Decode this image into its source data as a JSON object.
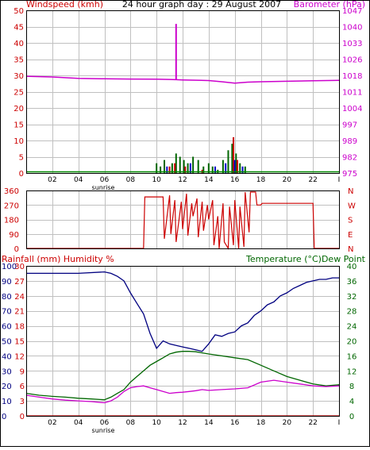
{
  "title": "24 hour graph day : 29 August 2007",
  "colors": {
    "wind": "#cc0000",
    "baro": "#cc00cc",
    "tempaxis": "#006600",
    "humaxis": "#000080",
    "dewaxis": "#cc00cc",
    "gust": "#0000cc",
    "grid": "#c0c0c0",
    "border": "#000000"
  },
  "chart_data": [
    {
      "type": "line",
      "id": "wind_baro",
      "ylabel_left": "Windspeed (kmh)",
      "ylabel_right": "Barometer (hPa)",
      "xticks": [
        "02",
        "04",
        "06",
        "08",
        "10",
        "12",
        "14",
        "16",
        "18",
        "20",
        "22",
        "I"
      ],
      "x_annotation": "sunrise",
      "yticks_left": [
        "0",
        "5",
        "10",
        "15",
        "20",
        "25",
        "30",
        "35",
        "40",
        "45",
        "50"
      ],
      "yticks_right": [
        "975",
        "982",
        "989",
        "997",
        "1004",
        "1011",
        "1018",
        "1026",
        "1033",
        "1040",
        "1047"
      ],
      "ylim_left": [
        0,
        50
      ],
      "ylim_right": [
        975,
        1047
      ],
      "series": [
        {
          "axis": "right",
          "color_key": "baro",
          "x": [
            0,
            2,
            4,
            6,
            8,
            10,
            11,
            11.5,
            12,
            14,
            15,
            16,
            17,
            18,
            20,
            22,
            24
          ],
          "y": [
            1017.8,
            1017.5,
            1016.9,
            1016.7,
            1016.6,
            1016.5,
            1016.4,
            1016.3,
            1016.2,
            1015.9,
            1015.4,
            1014.8,
            1015.2,
            1015.4,
            1015.6,
            1015.8,
            1016.0
          ]
        },
        {
          "axis": "right",
          "color_key": "baro",
          "type": "spike",
          "x": [
            11.5
          ],
          "y": [
            1041
          ]
        },
        {
          "axis": "left",
          "color_key": "tempaxis",
          "type": "bars",
          "x": [
            10.0,
            10.3,
            10.6,
            11.2,
            11.5,
            11.8,
            12.1,
            12.4,
            12.8,
            13.2,
            13.6,
            14.0,
            14.3,
            14.7,
            15.1,
            15.5,
            15.8,
            16.1,
            16.4,
            16.8
          ],
          "y": [
            3,
            2,
            4,
            3,
            6,
            5,
            4,
            3,
            5,
            4,
            2,
            3,
            2,
            1,
            4,
            7,
            9,
            6,
            3,
            2
          ]
        },
        {
          "axis": "left",
          "color_key": "wind",
          "type": "bars",
          "x": [
            11.0,
            11.4,
            12.2,
            13.5,
            15.9,
            16.2
          ],
          "y": [
            2,
            3,
            2,
            1,
            11,
            4
          ]
        },
        {
          "axis": "left",
          "color_key": "gust",
          "type": "bars",
          "x": [
            10.8,
            12.6,
            14.5,
            15.3,
            16.0,
            16.6
          ],
          "y": [
            2,
            3,
            2,
            3,
            4,
            2
          ]
        }
      ]
    },
    {
      "type": "line",
      "id": "wind_dir",
      "yticks_left": [
        "0",
        "90",
        "180",
        "270",
        "360"
      ],
      "yticks_right": [
        "N",
        "E",
        "S",
        "W",
        "N"
      ],
      "ylim": [
        0,
        360
      ],
      "series": [
        {
          "color_key": "wind",
          "x": [
            0,
            9,
            9.1,
            10.5,
            10.6,
            11.0,
            11.1,
            11.4,
            11.5,
            11.9,
            12.0,
            12.3,
            12.4,
            12.7,
            12.8,
            13.1,
            13.2,
            13.5,
            13.6,
            13.9,
            14.0,
            14.3,
            14.4,
            14.7,
            14.8,
            15.1,
            15.2,
            15.5,
            15.6,
            15.9,
            16.0,
            16.3,
            16.4,
            16.7,
            16.8,
            17.1,
            17.2,
            17.6,
            17.7,
            18.0,
            18.1,
            22.0,
            22.1,
            24.0
          ],
          "y": [
            0,
            0,
            320,
            320,
            60,
            330,
            90,
            300,
            40,
            290,
            120,
            340,
            80,
            280,
            200,
            310,
            70,
            290,
            110,
            270,
            180,
            300,
            20,
            200,
            0,
            280,
            40,
            0,
            260,
            20,
            300,
            0,
            260,
            10,
            350,
            100,
            350,
            350,
            270,
            270,
            280,
            280,
            0,
            0
          ]
        }
      ]
    },
    {
      "type": "line",
      "id": "temp_hum",
      "ylabel_left": "Rainfall (mm)  Humidity %",
      "ylabel_right": "Temperature (°C)Dew Point",
      "xticks": [
        "02",
        "04",
        "06",
        "08",
        "10",
        "12",
        "14",
        "16",
        "18",
        "20",
        "22",
        "I"
      ],
      "x_annotation": "sunrise",
      "yticks_left_hum": [
        "0",
        "10",
        "20",
        "30",
        "40",
        "50",
        "60",
        "70",
        "80",
        "90",
        "100"
      ],
      "yticks_left_rain": [
        "0",
        "3",
        "6",
        "9",
        "12",
        "15",
        "18",
        "21",
        "24",
        "27",
        "30"
      ],
      "yticks_right": [
        "0",
        "4",
        "8",
        "12",
        "16",
        "20",
        "24",
        "28",
        "32",
        "36",
        "40"
      ],
      "ylim_left": [
        0,
        100
      ],
      "ylim_right": [
        0,
        40
      ],
      "series": [
        {
          "name": "Humidity %",
          "axis": "left",
          "color_key": "humaxis",
          "x": [
            0,
            2,
            4,
            6,
            6.5,
            7,
            7.5,
            8,
            8.5,
            9,
            9.5,
            10,
            10.5,
            11,
            11.5,
            12,
            12.5,
            13,
            13.5,
            14,
            14.5,
            15,
            15.5,
            16,
            16.5,
            17,
            17.5,
            18,
            18.5,
            19,
            19.5,
            20,
            20.5,
            21,
            21.5,
            22,
            22.5,
            23,
            23.5,
            24
          ],
          "y": [
            95,
            95,
            95,
            96,
            95,
            93,
            90,
            82,
            75,
            68,
            55,
            45,
            50,
            48,
            47,
            46,
            45,
            44,
            43,
            48,
            54,
            53,
            55,
            56,
            60,
            62,
            67,
            70,
            74,
            76,
            80,
            82,
            85,
            87,
            89,
            90,
            91,
            91,
            92,
            92
          ]
        },
        {
          "name": "Temperature",
          "axis": "right",
          "color_key": "tempaxis",
          "x": [
            0,
            1,
            2,
            3,
            4,
            5,
            6,
            6.5,
            7,
            7.5,
            8,
            8.5,
            9,
            9.5,
            10,
            10.5,
            11,
            11.5,
            12,
            12.5,
            13,
            13.5,
            14,
            15,
            16,
            17,
            18,
            19,
            20,
            21,
            22,
            23,
            24
          ],
          "y": [
            6,
            5.5,
            5.2,
            5,
            4.7,
            4.5,
            4.3,
            5,
            6,
            7,
            9,
            10.5,
            12,
            13.5,
            14.5,
            15.5,
            16.5,
            17,
            17.2,
            17.2,
            17.1,
            16.8,
            16.5,
            16,
            15.5,
            15,
            13.5,
            12,
            10.5,
            9.5,
            8.5,
            8,
            8.3
          ]
        },
        {
          "name": "Dew Point",
          "axis": "right",
          "color_key": "baro",
          "x": [
            0,
            1,
            2,
            3,
            4,
            5,
            6,
            6.5,
            7,
            7.5,
            8,
            8.5,
            9,
            9.5,
            10,
            10.5,
            11,
            11.5,
            12,
            12.5,
            13,
            13.5,
            14,
            15,
            16,
            17,
            18,
            19,
            20,
            21,
            22,
            23,
            24
          ],
          "y": [
            5.5,
            5,
            4.5,
            4.2,
            4,
            3.8,
            3.5,
            4,
            5,
            6.5,
            7.5,
            7.8,
            8,
            7.5,
            7,
            6.5,
            6,
            6.2,
            6.3,
            6.5,
            6.7,
            7,
            6.8,
            7,
            7.2,
            7.5,
            9,
            9.5,
            9,
            8.5,
            8,
            7.8,
            8
          ]
        },
        {
          "name": "Rainfall",
          "axis": "left",
          "color_key": "wind",
          "x": [
            0,
            24
          ],
          "y": [
            0,
            0
          ]
        }
      ]
    }
  ]
}
